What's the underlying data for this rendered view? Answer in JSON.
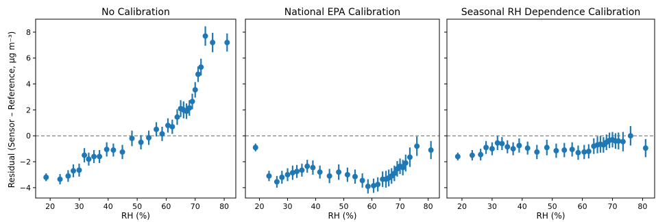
{
  "figure": {
    "ylabel": "Residual (Sensor – Reference, µg m⁻³)"
  },
  "chart_data": [
    {
      "type": "scatter",
      "title": "No Calibration",
      "xlabel": "RH (%)",
      "ylabel": "Residual (Sensor – Reference, µg m⁻³)",
      "xlim": [
        15,
        84
      ],
      "ylim": [
        -4.8,
        9.0
      ],
      "xticks": [
        20,
        30,
        40,
        50,
        60,
        70,
        80
      ],
      "yticks": [
        -4,
        -2,
        0,
        2,
        4,
        6,
        8
      ],
      "reference_line": 0,
      "color": "#1f77b4",
      "reference_color": "#808080",
      "series": [
        {
          "x": [
            18.6,
            23.4,
            26.2,
            28.0,
            30.0,
            31.8,
            33.3,
            35.1,
            37.0,
            39.5,
            41.8,
            44.9,
            48.2,
            51.3,
            54.0,
            56.6,
            58.6,
            60.6,
            62.1,
            63.8,
            65.0,
            66.0,
            67.0,
            68.0,
            69.0,
            70.0,
            71.0,
            72.0,
            73.5,
            76.0,
            81.0
          ],
          "y": [
            -3.2,
            -3.35,
            -3.1,
            -2.7,
            -2.65,
            -1.5,
            -1.8,
            -1.6,
            -1.6,
            -1.05,
            -1.1,
            -1.25,
            -0.2,
            -0.5,
            -0.15,
            0.5,
            0.15,
            0.8,
            0.7,
            1.45,
            2.1,
            2.0,
            1.9,
            2.15,
            2.65,
            3.55,
            4.75,
            5.3,
            7.7,
            7.2,
            7.2
          ],
          "err": [
            0.3,
            0.4,
            0.45,
            0.5,
            0.5,
            0.55,
            0.5,
            0.5,
            0.5,
            0.55,
            0.5,
            0.55,
            0.6,
            0.55,
            0.55,
            0.55,
            0.55,
            0.55,
            0.55,
            0.6,
            0.65,
            0.65,
            0.6,
            0.6,
            0.6,
            0.6,
            0.6,
            0.65,
            0.75,
            0.75,
            0.7
          ]
        }
      ]
    },
    {
      "type": "scatter",
      "title": "National EPA Calibration",
      "xlabel": "RH (%)",
      "xlim": [
        15,
        84
      ],
      "ylim": [
        -4.8,
        9.0
      ],
      "xticks": [
        20,
        30,
        40,
        50,
        60,
        70,
        80
      ],
      "yticks": [
        -4,
        -2,
        0,
        2,
        4,
        6,
        8
      ],
      "reference_line": 0,
      "color": "#1f77b4",
      "series": [
        {
          "x": [
            18.6,
            23.4,
            26.2,
            28.0,
            30.0,
            31.8,
            33.3,
            35.1,
            37.0,
            39.0,
            41.5,
            44.9,
            48.2,
            51.3,
            54.0,
            56.6,
            58.6,
            60.6,
            62.1,
            63.8,
            65.0,
            66.0,
            67.0,
            68.0,
            69.0,
            70.0,
            71.0,
            72.0,
            73.5,
            76.0,
            81.0
          ],
          "y": [
            -0.9,
            -3.1,
            -3.55,
            -3.2,
            -3.0,
            -2.85,
            -2.75,
            -2.65,
            -2.35,
            -2.45,
            -2.8,
            -3.1,
            -2.8,
            -3.0,
            -3.15,
            -3.45,
            -3.9,
            -3.85,
            -3.75,
            -3.35,
            -3.35,
            -3.25,
            -3.1,
            -2.9,
            -2.55,
            -2.35,
            -2.45,
            -2.1,
            -1.65,
            -0.8,
            -1.1
          ]
        }
      ]
    },
    {
      "type": "scatter",
      "title": "Seasonal RH Dependence Calibration",
      "xlabel": "RH (%)",
      "xlim": [
        15,
        84
      ],
      "ylim": [
        -4.8,
        9.0
      ],
      "xticks": [
        20,
        30,
        40,
        50,
        60,
        70,
        80
      ],
      "yticks": [
        -4,
        -2,
        0,
        2,
        4,
        6,
        8
      ],
      "reference_line": 0,
      "color": "#1f77b4",
      "series": [
        {
          "x": [
            18.6,
            23.4,
            26.2,
            28.0,
            30.0,
            31.8,
            33.3,
            35.1,
            37.0,
            39.0,
            41.8,
            44.9,
            48.2,
            51.3,
            54.0,
            56.6,
            58.6,
            60.6,
            62.1,
            63.8,
            65.0,
            66.0,
            67.0,
            68.0,
            69.0,
            70.0,
            71.0,
            72.0,
            73.5,
            76.0,
            81.0
          ],
          "y": [
            -1.6,
            -1.5,
            -1.45,
            -0.9,
            -1.0,
            -0.55,
            -0.6,
            -0.85,
            -1.0,
            -0.75,
            -0.95,
            -1.25,
            -0.9,
            -1.15,
            -1.1,
            -1.05,
            -1.3,
            -1.25,
            -1.2,
            -0.8,
            -0.7,
            -0.65,
            -0.7,
            -0.5,
            -0.35,
            -0.3,
            -0.4,
            -0.4,
            -0.45,
            0.0,
            -0.95
          ]
        }
      ]
    }
  ]
}
